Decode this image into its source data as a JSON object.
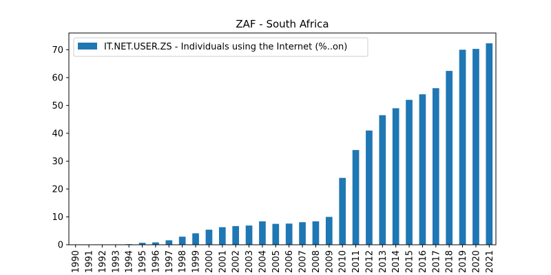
{
  "chart_data": {
    "type": "bar",
    "title": "ZAF - South Africa",
    "xlabel": "",
    "ylabel": "",
    "ylim": [
      0,
      76
    ],
    "yticks": [
      0,
      10,
      20,
      30,
      40,
      50,
      60,
      70
    ],
    "grid": false,
    "legend_position": "upper-left",
    "categories": [
      "1990",
      "1991",
      "1992",
      "1993",
      "1994",
      "1995",
      "1996",
      "1997",
      "1998",
      "1999",
      "2000",
      "2001",
      "2002",
      "2003",
      "2004",
      "2005",
      "2006",
      "2007",
      "2008",
      "2009",
      "2010",
      "2011",
      "2012",
      "2013",
      "2014",
      "2015",
      "2016",
      "2017",
      "2018",
      "2019",
      "2020",
      "2021"
    ],
    "series": [
      {
        "name": "IT.NET.USER.ZS - Individuals using the Internet (%..on)",
        "color": "#1f77b4",
        "values": [
          0,
          0,
          0,
          0.03,
          0.21,
          0.7,
          0.85,
          1.6,
          2.9,
          4.1,
          5.4,
          6.3,
          6.7,
          6.9,
          8.4,
          7.5,
          7.6,
          8.1,
          8.4,
          10.0,
          24.0,
          34.0,
          41.0,
          46.5,
          49.0,
          52.0,
          54.0,
          56.2,
          62.4,
          70.0,
          70.3,
          72.3
        ]
      }
    ]
  }
}
